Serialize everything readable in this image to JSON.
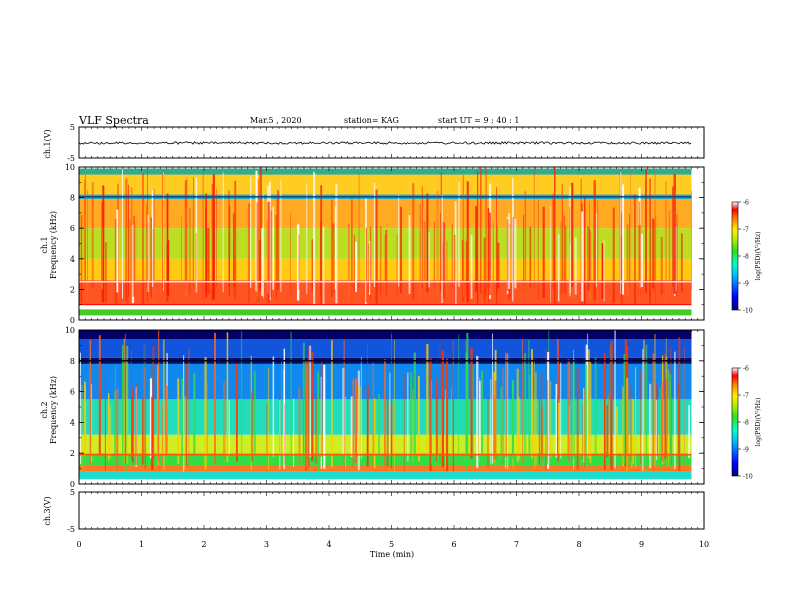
{
  "header": {
    "title": "VLF Spectra",
    "date": "Mar.5 , 2020",
    "station": "station= KAG",
    "start": "start UT = 9 : 40 : 1"
  },
  "chart_data": [
    {
      "type": "line",
      "id": "ch1-waveform",
      "ylabel": "ch.1(V)",
      "ylim": [
        -5,
        5
      ],
      "yticks": [
        "5",
        "-5"
      ],
      "xlim": [
        0,
        10
      ],
      "note": "signal near 0 V across 0 to 9.8 min"
    },
    {
      "type": "heatmap",
      "id": "ch1-spectrogram",
      "ylabel_top": "ch.1",
      "ylabel": "Frequency (kHz)",
      "ylim": [
        0,
        10
      ],
      "yticks": [
        "0",
        "2",
        "4",
        "6",
        "8",
        "10"
      ],
      "xlim": [
        0,
        10
      ],
      "data_end_min": 9.8,
      "colorbar": {
        "label": "log(PSD)(V²/Hz)",
        "range": [
          -10,
          -6
        ],
        "ticks": [
          "-6",
          "-7",
          "-8",
          "-9",
          "-10"
        ]
      }
    },
    {
      "type": "heatmap",
      "id": "ch2-spectrogram",
      "ylabel_top": "ch.2",
      "ylabel": "Frequency (kHz)",
      "ylim": [
        0,
        10
      ],
      "yticks": [
        "0",
        "2",
        "4",
        "6",
        "8",
        "10"
      ],
      "xlim": [
        0,
        10
      ],
      "data_end_min": 9.8,
      "colorbar": {
        "label": "log(PSD)(V²/Hz)",
        "range": [
          -10,
          -6
        ],
        "ticks": [
          "-6",
          "-7",
          "-8",
          "-9",
          "-10"
        ]
      }
    },
    {
      "type": "line",
      "id": "ch3-waveform",
      "ylabel": "ch.3(V)",
      "ylim": [
        -5,
        5
      ],
      "yticks": [
        "5",
        "-5"
      ],
      "xlim": [
        0,
        10
      ],
      "note": "no signal shown"
    }
  ],
  "xaxis": {
    "label": "Time (min)",
    "ticks": [
      "0",
      "1",
      "2",
      "3",
      "4",
      "5",
      "6",
      "7",
      "8",
      "9",
      "10"
    ]
  }
}
